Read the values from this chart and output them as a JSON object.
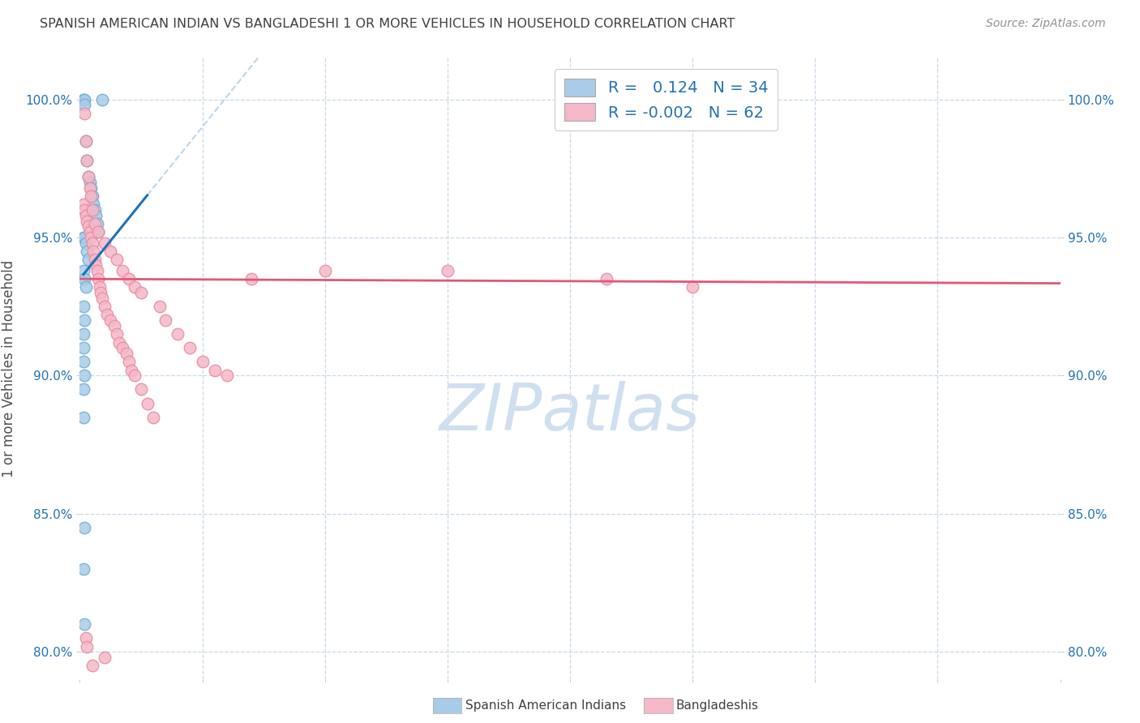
{
  "title": "SPANISH AMERICAN INDIAN VS BANGLADESHI 1 OR MORE VEHICLES IN HOUSEHOLD CORRELATION CHART",
  "source": "Source: ZipAtlas.com",
  "ylabel": "1 or more Vehicles in Household",
  "legend_label1": "Spanish American Indians",
  "legend_label2": "Bangladeshis",
  "R1": 0.124,
  "N1": 34,
  "R2": -0.002,
  "N2": 62,
  "xlim": [
    0.0,
    80.0
  ],
  "ylim": [
    79.0,
    101.5
  ],
  "blue_color": "#a8cce8",
  "pink_color": "#f5b8c8",
  "blue_edge_color": "#6aaed6",
  "pink_edge_color": "#e88aa0",
  "blue_line_color": "#2171b5",
  "pink_line_color": "#e05878",
  "blue_dash_color": "#a8cce8",
  "grid_color": "#c8d8e8",
  "watermark_color": "#d0dff0",
  "title_color": "#404040",
  "source_color": "#909090",
  "blue_scatter_x": [
    0.3,
    1.8,
    0.4,
    0.4,
    0.5,
    0.6,
    0.7,
    0.8,
    0.9,
    1.0,
    1.1,
    1.2,
    1.3,
    1.4,
    1.5,
    0.3,
    0.4,
    0.5,
    0.6,
    0.7,
    0.3,
    0.4,
    0.5,
    0.3,
    0.4,
    0.3,
    0.3,
    0.3,
    0.4,
    0.3,
    0.3,
    0.4,
    0.3,
    0.4
  ],
  "blue_scatter_y": [
    100.0,
    100.0,
    100.0,
    99.8,
    98.5,
    97.8,
    97.2,
    97.0,
    96.8,
    96.5,
    96.2,
    96.0,
    95.8,
    95.5,
    95.2,
    95.0,
    95.0,
    94.8,
    94.5,
    94.2,
    93.8,
    93.5,
    93.2,
    92.5,
    92.0,
    91.5,
    91.0,
    90.5,
    90.0,
    89.5,
    88.5,
    84.5,
    83.0,
    81.0
  ],
  "pink_scatter_x": [
    0.3,
    0.4,
    0.5,
    0.6,
    0.7,
    0.8,
    0.9,
    1.0,
    1.1,
    1.2,
    1.3,
    1.4,
    1.5,
    1.6,
    1.7,
    1.8,
    2.0,
    2.2,
    2.5,
    2.8,
    3.0,
    3.2,
    3.5,
    3.8,
    4.0,
    4.2,
    4.5,
    5.0,
    5.5,
    6.0,
    0.4,
    0.5,
    0.6,
    0.7,
    0.8,
    0.9,
    1.0,
    1.2,
    1.5,
    2.0,
    2.5,
    3.0,
    3.5,
    4.0,
    4.5,
    5.0,
    6.5,
    7.0,
    8.0,
    9.0,
    10.0,
    11.0,
    12.0,
    14.0,
    20.0,
    30.0,
    43.0,
    50.0,
    0.5,
    0.6,
    1.0,
    2.0
  ],
  "pink_scatter_y": [
    96.2,
    96.0,
    95.8,
    95.6,
    95.4,
    95.2,
    95.0,
    94.8,
    94.5,
    94.2,
    94.0,
    93.8,
    93.5,
    93.2,
    93.0,
    92.8,
    92.5,
    92.2,
    92.0,
    91.8,
    91.5,
    91.2,
    91.0,
    90.8,
    90.5,
    90.2,
    90.0,
    89.5,
    89.0,
    88.5,
    99.5,
    98.5,
    97.8,
    97.2,
    96.8,
    96.5,
    96.0,
    95.5,
    95.2,
    94.8,
    94.5,
    94.2,
    93.8,
    93.5,
    93.2,
    93.0,
    92.5,
    92.0,
    91.5,
    91.0,
    90.5,
    90.2,
    90.0,
    93.5,
    93.8,
    93.8,
    93.5,
    93.2,
    80.5,
    80.2,
    79.5,
    79.8
  ],
  "x_tick_positions": [
    0,
    10,
    20,
    30,
    40,
    50,
    60,
    70,
    80
  ],
  "y_tick_positions": [
    80,
    85,
    90,
    95,
    100
  ]
}
